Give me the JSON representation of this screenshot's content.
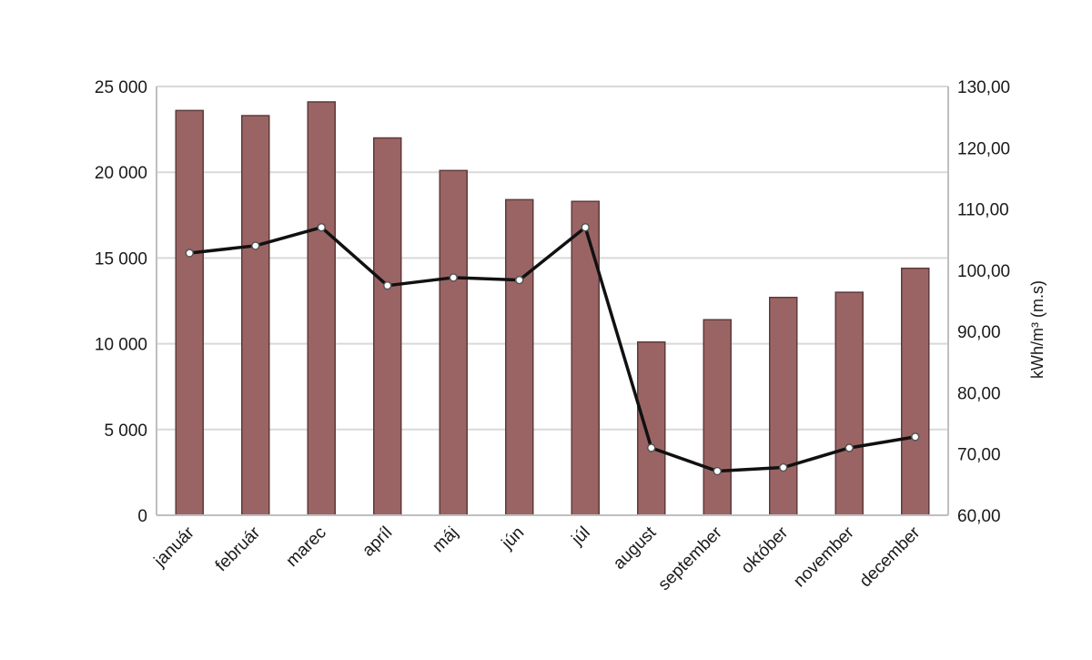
{
  "chart_data": {
    "type": "bar",
    "categories": [
      "január",
      "február",
      "marec",
      "apríl",
      "máj",
      "jún",
      "júl",
      "august",
      "september",
      "október",
      "november",
      "december"
    ],
    "series": [
      {
        "type": "bar",
        "axis": "left",
        "color": "#9b6464",
        "values": [
          23600,
          23300,
          24100,
          22000,
          20100,
          18400,
          18300,
          10100,
          11400,
          12700,
          13000,
          14400
        ]
      },
      {
        "type": "line",
        "axis": "right",
        "color": "#111111",
        "values": [
          102.8,
          104.0,
          107.0,
          97.5,
          98.8,
          98.4,
          107.0,
          71.0,
          67.2,
          67.8,
          71.0,
          72.8
        ]
      }
    ],
    "ylim": [
      0,
      25000
    ],
    "y2lim": [
      60,
      130
    ],
    "yticks": [
      "0",
      "5 000",
      "10 000",
      "15 000",
      "20 000",
      "25 000"
    ],
    "y2ticks": [
      "60,00",
      "70,00",
      "80,00",
      "90,00",
      "100,00",
      "110,00",
      "120,00",
      "130,00"
    ],
    "ylabel": "",
    "y2label": "kWh/m³ (m.s)",
    "grid": true,
    "legend": "none"
  }
}
